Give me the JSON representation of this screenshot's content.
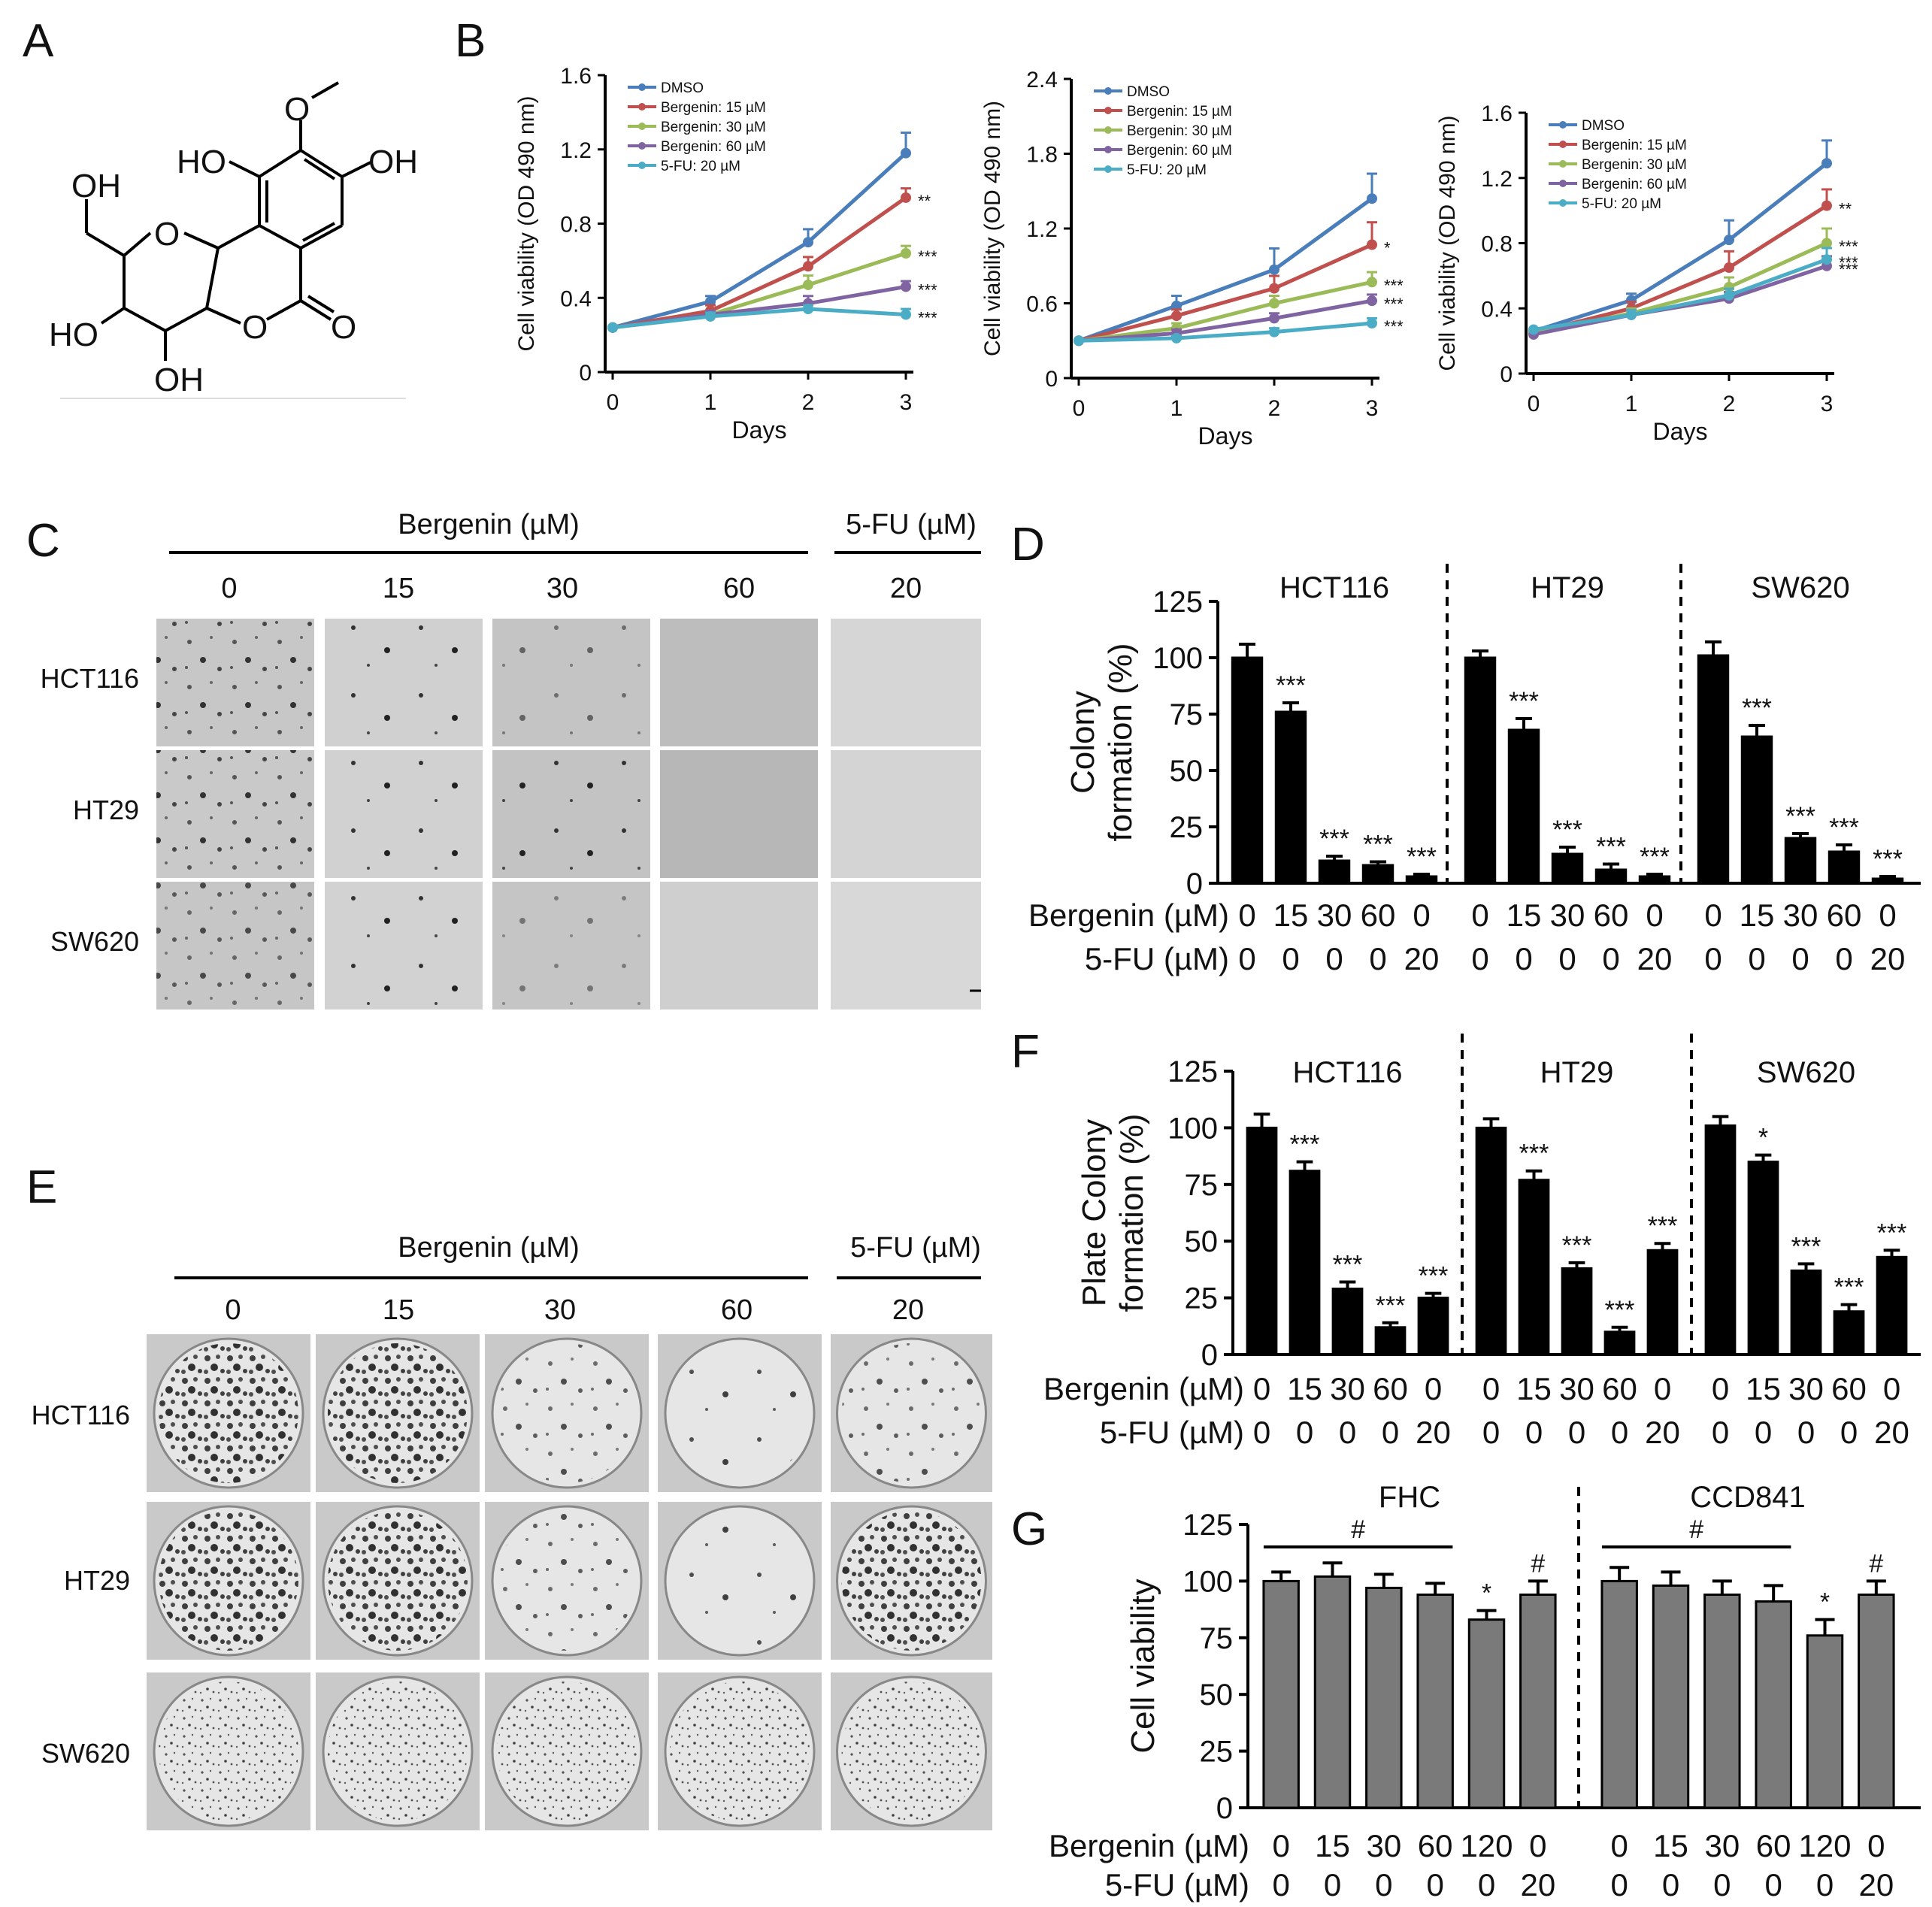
{
  "figure": {
    "panels": {
      "A": {
        "letter": "A",
        "atoms": {
          "ome": "O",
          "ho_left": "HO",
          "oh_right": "OH",
          "ch2oh": "OH",
          "ring_o": "O",
          "ho_c4": "HO",
          "ring_o2": "O",
          "carbonyl_o": "O",
          "oh_bottom": "OH"
        }
      },
      "B": {
        "letter": "B"
      },
      "C": {
        "letter": "C",
        "bergenin_header": "Bergenin (µM)",
        "fu_header": "5-FU (µM)",
        "doses": [
          "0",
          "15",
          "30",
          "60",
          "20"
        ],
        "rows": [
          "HCT116",
          "HT29",
          "SW620"
        ]
      },
      "D": {
        "letter": "D"
      },
      "E": {
        "letter": "E",
        "bergenin_header": "Bergenin (µM)",
        "fu_header": "5-FU (µM)",
        "doses": [
          "0",
          "15",
          "30",
          "60",
          "20"
        ],
        "rows": [
          "HCT116",
          "HT29",
          "SW620"
        ]
      },
      "F": {
        "letter": "F"
      },
      "G": {
        "letter": "G"
      }
    }
  },
  "chart_data": [
    {
      "panel": "B",
      "type": "line",
      "ylabel": "Cell viability (OD 490 nm)",
      "xlabel": "Days",
      "x": [
        0,
        1,
        2,
        3
      ],
      "ylim": [
        0,
        1.6
      ],
      "yticks": [
        "0",
        "0.4",
        "0.8",
        "1.2",
        "1.6"
      ],
      "xticks": [
        "0",
        "1",
        "2",
        "3"
      ],
      "series": [
        {
          "name": "DMSO",
          "color": "#4a7ebb",
          "values": [
            0.24,
            0.38,
            0.7,
            1.18
          ],
          "err": [
            0.02,
            0.03,
            0.07,
            0.11
          ],
          "sig": ""
        },
        {
          "name": "Bergenin: 15 µM",
          "color": "#c0504d",
          "values": [
            0.24,
            0.33,
            0.57,
            0.94
          ],
          "err": [
            0.02,
            0.03,
            0.05,
            0.05
          ],
          "sig": "**"
        },
        {
          "name": "Bergenin: 30 µM",
          "color": "#9bbb59",
          "values": [
            0.24,
            0.31,
            0.47,
            0.64
          ],
          "err": [
            0.02,
            0.02,
            0.05,
            0.04
          ],
          "sig": "***"
        },
        {
          "name": "Bergenin: 60 µM",
          "color": "#8064a2",
          "values": [
            0.24,
            0.31,
            0.37,
            0.46
          ],
          "err": [
            0.02,
            0.02,
            0.04,
            0.03
          ],
          "sig": "***"
        },
        {
          "name": "5-FU: 20 µM",
          "color": "#4bacc6",
          "values": [
            0.24,
            0.3,
            0.34,
            0.31
          ],
          "err": [
            0.02,
            0.02,
            0.02,
            0.03
          ],
          "sig": "***"
        }
      ]
    },
    {
      "panel": "B",
      "type": "line",
      "ylabel": "Cell viability (OD 490 nm)",
      "xlabel": "Days",
      "x": [
        0,
        1,
        2,
        3
      ],
      "ylim": [
        0,
        2.4
      ],
      "yticks": [
        "0",
        "0.6",
        "1.2",
        "1.8",
        "2.4"
      ],
      "xticks": [
        "0",
        "1",
        "2",
        "3"
      ],
      "series": [
        {
          "name": "DMSO",
          "color": "#4a7ebb",
          "values": [
            0.3,
            0.58,
            0.87,
            1.44
          ],
          "err": [
            0.02,
            0.08,
            0.17,
            0.2
          ],
          "sig": ""
        },
        {
          "name": "Bergenin: 15 µM",
          "color": "#c0504d",
          "values": [
            0.3,
            0.5,
            0.72,
            1.07
          ],
          "err": [
            0.02,
            0.05,
            0.1,
            0.18
          ],
          "sig": "*"
        },
        {
          "name": "Bergenin: 30 µM",
          "color": "#9bbb59",
          "values": [
            0.3,
            0.4,
            0.6,
            0.77
          ],
          "err": [
            0.02,
            0.04,
            0.06,
            0.08
          ],
          "sig": "***"
        },
        {
          "name": "Bergenin: 60 µM",
          "color": "#8064a2",
          "values": [
            0.3,
            0.36,
            0.48,
            0.62
          ],
          "err": [
            0.02,
            0.03,
            0.04,
            0.05
          ],
          "sig": "***"
        },
        {
          "name": "5-FU: 20 µM",
          "color": "#4bacc6",
          "values": [
            0.3,
            0.32,
            0.37,
            0.44
          ],
          "err": [
            0.02,
            0.02,
            0.03,
            0.04
          ],
          "sig": "***"
        }
      ]
    },
    {
      "panel": "B",
      "type": "line",
      "ylabel": "Cell viability (OD 490 nm)",
      "xlabel": "Days",
      "x": [
        0,
        1,
        2,
        3
      ],
      "ylim": [
        0,
        1.6
      ],
      "yticks": [
        "0",
        "0.4",
        "0.8",
        "1.2",
        "1.6"
      ],
      "xticks": [
        "0",
        "1",
        "2",
        "3"
      ],
      "series": [
        {
          "name": "DMSO",
          "color": "#4a7ebb",
          "values": [
            0.26,
            0.45,
            0.82,
            1.29
          ],
          "err": [
            0.02,
            0.04,
            0.12,
            0.14
          ],
          "sig": ""
        },
        {
          "name": "Bergenin: 15 µM",
          "color": "#c0504d",
          "values": [
            0.25,
            0.4,
            0.65,
            1.03
          ],
          "err": [
            0.02,
            0.04,
            0.1,
            0.1
          ],
          "sig": "**"
        },
        {
          "name": "Bergenin: 30 µM",
          "color": "#9bbb59",
          "values": [
            0.25,
            0.37,
            0.53,
            0.8
          ],
          "err": [
            0.02,
            0.03,
            0.06,
            0.09
          ],
          "sig": "***"
        },
        {
          "name": "Bergenin: 60 µM",
          "color": "#8064a2",
          "values": [
            0.24,
            0.36,
            0.46,
            0.66
          ],
          "err": [
            0.02,
            0.03,
            0.04,
            0.06
          ],
          "sig": "***"
        },
        {
          "name": "5-FU: 20 µM",
          "color": "#4bacc6",
          "values": [
            0.27,
            0.36,
            0.48,
            0.7
          ],
          "err": [
            0.02,
            0.03,
            0.04,
            0.07
          ],
          "sig": "***"
        }
      ]
    },
    {
      "panel": "D",
      "type": "bar",
      "ylabel": [
        "Colony",
        "formation (%)"
      ],
      "ylim": [
        0,
        125
      ],
      "yticks": [
        "0",
        "25",
        "50",
        "75",
        "100",
        "125"
      ],
      "row_labels": [
        "Bergenin (µM)",
        "5-FU (µM)"
      ],
      "groups": [
        {
          "title": "HCT116",
          "bergenin": [
            "0",
            "15",
            "30",
            "60",
            "0"
          ],
          "fu": [
            "0",
            "0",
            "0",
            "0",
            "20"
          ],
          "values": [
            100,
            76,
            10,
            8,
            3
          ],
          "err": [
            6,
            4,
            2,
            1.5,
            1
          ],
          "sig": [
            "",
            "***",
            "***",
            "***",
            "***"
          ]
        },
        {
          "title": "HT29",
          "bergenin": [
            "0",
            "15",
            "30",
            "60",
            "0"
          ],
          "fu": [
            "0",
            "0",
            "0",
            "0",
            "20"
          ],
          "values": [
            100,
            68,
            13,
            6,
            3
          ],
          "err": [
            3,
            5,
            3,
            2.5,
            1
          ],
          "sig": [
            "",
            "***",
            "***",
            "***",
            "***"
          ]
        },
        {
          "title": "SW620",
          "bergenin": [
            "0",
            "15",
            "30",
            "60",
            "0"
          ],
          "fu": [
            "0",
            "0",
            "0",
            "0",
            "20"
          ],
          "values": [
            101,
            65,
            20,
            14,
            2
          ],
          "err": [
            6,
            5,
            2,
            3,
            1
          ],
          "sig": [
            "",
            "***",
            "***",
            "***",
            "***"
          ]
        }
      ]
    },
    {
      "panel": "F",
      "type": "bar",
      "ylabel": [
        "Plate Colony",
        "formation (%)"
      ],
      "ylim": [
        0,
        125
      ],
      "yticks": [
        "0",
        "25",
        "50",
        "75",
        "100",
        "125"
      ],
      "row_labels": [
        "Bergenin (µM)",
        "5-FU (µM)"
      ],
      "groups": [
        {
          "title": "HCT116",
          "bergenin": [
            "0",
            "15",
            "30",
            "60",
            "0"
          ],
          "fu": [
            "0",
            "0",
            "0",
            "0",
            "20"
          ],
          "values": [
            100,
            81,
            29,
            12,
            25
          ],
          "err": [
            6,
            4,
            3,
            2,
            2
          ],
          "sig": [
            "",
            "***",
            "***",
            "***",
            "***"
          ]
        },
        {
          "title": "HT29",
          "bergenin": [
            "0",
            "15",
            "30",
            "60",
            "0"
          ],
          "fu": [
            "0",
            "0",
            "0",
            "0",
            "20"
          ],
          "values": [
            100,
            77,
            38,
            10,
            46
          ],
          "err": [
            4,
            4,
            2.5,
            2,
            3
          ],
          "sig": [
            "",
            "***",
            "***",
            "***",
            "***"
          ]
        },
        {
          "title": "SW620",
          "bergenin": [
            "0",
            "15",
            "30",
            "60",
            "0"
          ],
          "fu": [
            "0",
            "0",
            "0",
            "0",
            "20"
          ],
          "values": [
            101,
            85,
            37,
            19,
            43
          ],
          "err": [
            4,
            3,
            3,
            3,
            3
          ],
          "sig": [
            "",
            "*",
            "***",
            "***",
            "***"
          ]
        }
      ]
    },
    {
      "panel": "G",
      "type": "bar",
      "ylabel": [
        "Cell viability"
      ],
      "ylim": [
        0,
        125
      ],
      "yticks": [
        "0",
        "25",
        "50",
        "75",
        "100",
        "125"
      ],
      "row_labels": [
        "Bergenin (µM)",
        "5-FU (µM)"
      ],
      "groups": [
        {
          "title": "FHC",
          "bergenin": [
            "0",
            "15",
            "30",
            "60",
            "120",
            "0"
          ],
          "fu": [
            "0",
            "0",
            "0",
            "0",
            "0",
            "20"
          ],
          "values": [
            100,
            102,
            97,
            94,
            83,
            94
          ],
          "err": [
            4,
            6,
            6,
            5,
            4,
            6
          ],
          "sig": [
            "",
            "",
            "",
            "",
            "*",
            "#"
          ],
          "bracket_sig": "#"
        },
        {
          "title": "CCD841",
          "bergenin": [
            "0",
            "15",
            "30",
            "60",
            "120",
            "0"
          ],
          "fu": [
            "0",
            "0",
            "0",
            "0",
            "0",
            "20"
          ],
          "values": [
            100,
            98,
            94,
            91,
            76,
            94
          ],
          "err": [
            6,
            6,
            6,
            7,
            7,
            6
          ],
          "sig": [
            "",
            "",
            "",
            "",
            "*",
            "#"
          ],
          "bracket_sig": "#"
        }
      ]
    }
  ]
}
